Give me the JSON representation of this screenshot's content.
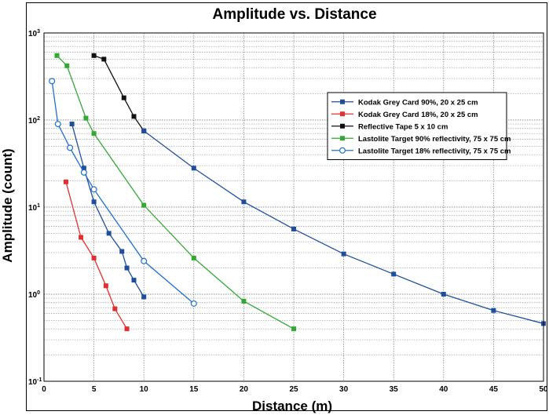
{
  "chart_data": {
    "type": "line",
    "title": "Amplitude vs. Distance",
    "xlabel": "Distance (m)",
    "ylabel": "Amplitude (count)",
    "xlim": [
      0,
      50
    ],
    "ylim": [
      0.1,
      1000
    ],
    "yscale": "log",
    "grid": true,
    "legend_position": "top-right",
    "x_ticks": [
      "0",
      "5",
      "10",
      "15",
      "20",
      "25",
      "30",
      "35",
      "40",
      "45",
      "50"
    ],
    "y_ticks": [
      {
        "base": "10",
        "exp": "-1"
      },
      {
        "base": "10",
        "exp": "0"
      },
      {
        "base": "10",
        "exp": "1"
      },
      {
        "base": "10",
        "exp": "2"
      },
      {
        "base": "10",
        "exp": "3"
      }
    ],
    "series": [
      {
        "name": "Kodak Grey Card 90%, 20 x 25 cm",
        "color": "#1f4e9c",
        "marker": "square",
        "x": [
          2.8,
          4,
          5,
          6.5,
          7.8,
          8.3,
          9,
          10
        ],
        "y": [
          90,
          28,
          11.5,
          5,
          3.1,
          2,
          1.45,
          0.93
        ]
      },
      {
        "name": "Kodak Grey Card 18%, 20 x 25 cm",
        "color": "#e03030",
        "marker": "square",
        "x": [
          2.2,
          3.7,
          5,
          6.2,
          7.1,
          8.3
        ],
        "y": [
          19.5,
          4.5,
          2.6,
          1.25,
          0.68,
          0.4
        ]
      },
      {
        "name": "Reflective Tape 5 x 10 cm",
        "color": "#111111",
        "marker": "square",
        "x": [
          5,
          6,
          8,
          9,
          10
        ],
        "y": [
          550,
          500,
          180,
          110,
          75
        ]
      },
      {
        "name": "Lastolite Target 90% reflectivity, 75 x 75 cm",
        "color": "#33a833",
        "marker": "square",
        "x": [
          1.3,
          2.3,
          4.2,
          5,
          10,
          15,
          20,
          25
        ],
        "y": [
          550,
          420,
          105,
          70,
          10.5,
          2.6,
          0.83,
          0.4
        ]
      },
      {
        "name": "Lastolite Target 18% reflectivity, 75 x 75 cm",
        "color": "#1f6fd0",
        "marker": "circle",
        "x": [
          0.8,
          1.4,
          2.6,
          4,
          5,
          10,
          15
        ],
        "y": [
          280,
          90,
          48,
          25,
          16,
          2.4,
          0.78
        ]
      },
      {
        "name": "",
        "color": "#1f4e9c",
        "marker": "square",
        "x": [
          10,
          15,
          20,
          25,
          30,
          35,
          40,
          45,
          50
        ],
        "y": [
          75,
          28,
          11.5,
          5.6,
          2.9,
          1.7,
          1.0,
          0.65,
          0.46
        ]
      }
    ]
  }
}
